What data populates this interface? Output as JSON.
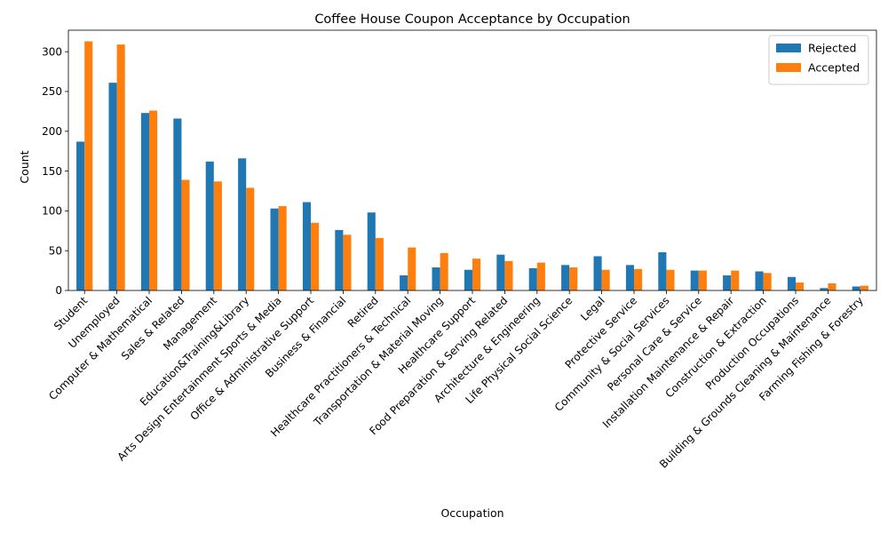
{
  "chart_data": {
    "type": "bar",
    "title": "Coffee House Coupon Acceptance by Occupation",
    "xlabel": "Occupation",
    "ylabel": "Count",
    "ylim": [
      0,
      327
    ],
    "yticks": [
      0,
      50,
      100,
      150,
      200,
      250,
      300
    ],
    "legend_position": "top-right",
    "grid": false,
    "categories": [
      "Student",
      "Unemployed",
      "Computer & Mathematical",
      "Sales & Related",
      "Management",
      "Education&Training&Library",
      "Arts Design Entertainment Sports & Media",
      "Office & Administrative Support",
      "Business & Financial",
      "Retired",
      "Healthcare Practitioners & Technical",
      "Transportation & Material Moving",
      "Healthcare Support",
      "Food Preparation & Serving Related",
      "Architecture & Engineering",
      "Life Physical Social Science",
      "Legal",
      "Protective Service",
      "Community & Social Services",
      "Personal Care & Service",
      "Installation Maintenance & Repair",
      "Construction & Extraction",
      "Production Occupations",
      "Building & Grounds Cleaning & Maintenance",
      "Farming Fishing & Forestry"
    ],
    "series": [
      {
        "name": "Rejected",
        "color": "#1f77b4",
        "values": [
          187,
          261,
          223,
          216,
          162,
          166,
          103,
          111,
          76,
          98,
          19,
          29,
          26,
          45,
          28,
          32,
          43,
          32,
          48,
          25,
          19,
          24,
          17,
          3,
          5
        ]
      },
      {
        "name": "Accepted",
        "color": "#ff7f0e",
        "values": [
          313,
          309,
          226,
          139,
          137,
          129,
          106,
          85,
          70,
          66,
          54,
          47,
          40,
          37,
          35,
          29,
          26,
          27,
          26,
          25,
          25,
          22,
          10,
          9,
          6
        ]
      }
    ]
  }
}
